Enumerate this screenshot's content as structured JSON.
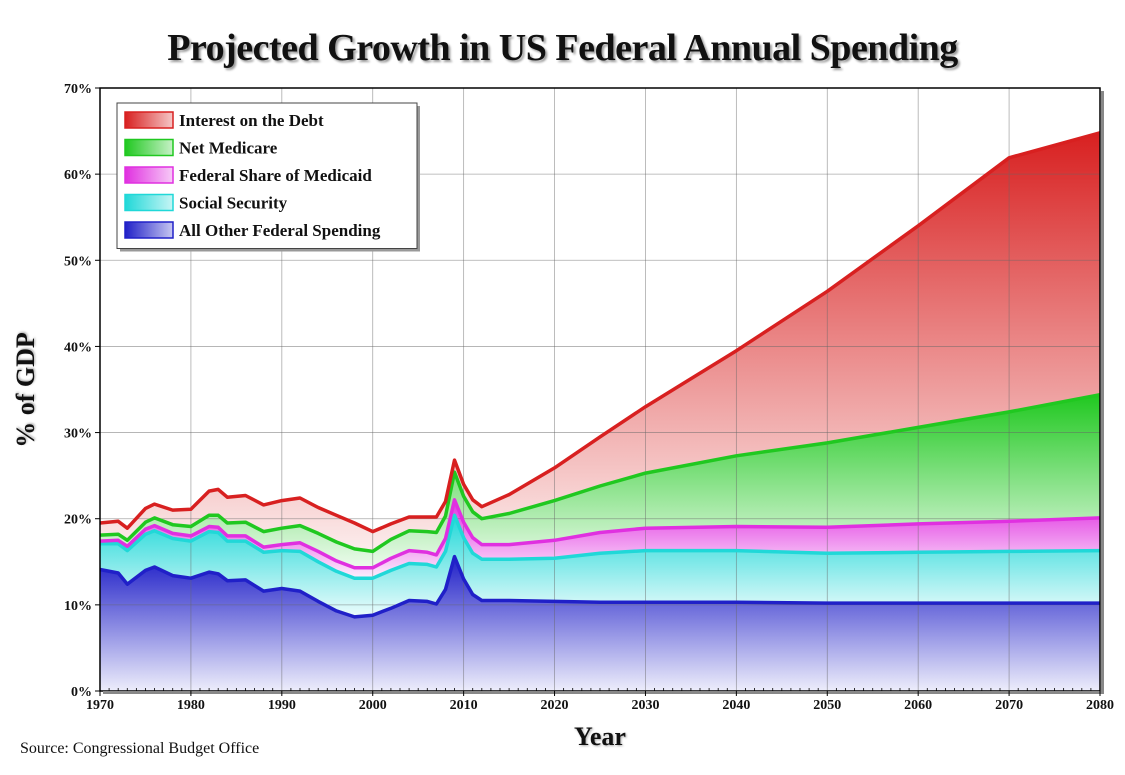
{
  "chart_data": {
    "type": "area",
    "stacked": true,
    "title": "Projected Growth in US Federal Annual Spending",
    "xlabel": "Year",
    "ylabel": "% of GDP",
    "source": "Source: Congressional Budget Office",
    "xlim": [
      1970,
      2080
    ],
    "ylim": [
      0,
      70
    ],
    "x_ticks": [
      "1970",
      "1980",
      "1990",
      "2000",
      "2010",
      "2020",
      "2030",
      "2040",
      "2050",
      "2060",
      "2070",
      "2080"
    ],
    "y_ticks": [
      "0%",
      "10%",
      "20%",
      "30%",
      "40%",
      "50%",
      "60%",
      "70%"
    ],
    "grid": true,
    "legend_position": "top-left",
    "x": [
      1970,
      1972,
      1973,
      1975,
      1976,
      1978,
      1980,
      1982,
      1983,
      1984,
      1986,
      1988,
      1990,
      1992,
      1994,
      1996,
      1998,
      2000,
      2002,
      2004,
      2006,
      2007,
      2008,
      2009,
      2010,
      2011,
      2012,
      2015,
      2020,
      2025,
      2030,
      2040,
      2050,
      2060,
      2070,
      2080
    ],
    "series": [
      {
        "name": "All Other Federal Spending",
        "color": "#2020c8",
        "values": [
          14.1,
          13.7,
          12.4,
          14.0,
          14.4,
          13.4,
          13.1,
          13.8,
          13.6,
          12.8,
          12.9,
          11.6,
          11.9,
          11.6,
          10.4,
          9.3,
          8.6,
          8.8,
          9.6,
          10.5,
          10.4,
          10.1,
          11.8,
          15.6,
          13.0,
          11.2,
          10.5,
          10.5,
          10.4,
          10.3,
          10.3,
          10.3,
          10.2,
          10.2,
          10.2,
          10.2
        ]
      },
      {
        "name": "Social Security",
        "color": "#20d8d8",
        "values": [
          3.0,
          3.4,
          3.9,
          4.2,
          4.2,
          4.3,
          4.3,
          4.7,
          4.8,
          4.6,
          4.5,
          4.5,
          4.4,
          4.6,
          4.6,
          4.6,
          4.5,
          4.3,
          4.4,
          4.3,
          4.3,
          4.3,
          4.4,
          4.8,
          4.8,
          4.8,
          4.8,
          4.8,
          5.0,
          5.7,
          6.0,
          6.0,
          5.8,
          5.9,
          6.0,
          6.1
        ]
      },
      {
        "name": "Federal Share of Medicaid",
        "color": "#e030e0",
        "values": [
          0.3,
          0.4,
          0.5,
          0.6,
          0.6,
          0.6,
          0.6,
          0.6,
          0.6,
          0.6,
          0.6,
          0.6,
          0.7,
          1.0,
          1.2,
          1.2,
          1.2,
          1.2,
          1.4,
          1.5,
          1.4,
          1.4,
          1.5,
          1.8,
          1.8,
          1.8,
          1.7,
          1.7,
          2.1,
          2.4,
          2.6,
          2.8,
          3.0,
          3.3,
          3.5,
          3.8
        ]
      },
      {
        "name": "Net Medicare",
        "color": "#20c820",
        "values": [
          0.7,
          0.7,
          0.7,
          0.8,
          0.9,
          1.0,
          1.1,
          1.3,
          1.4,
          1.5,
          1.6,
          1.8,
          1.9,
          2.0,
          2.1,
          2.2,
          2.2,
          1.9,
          2.2,
          2.3,
          2.4,
          2.6,
          2.6,
          3.2,
          3.0,
          3.0,
          3.0,
          3.6,
          4.6,
          5.4,
          6.4,
          8.2,
          9.8,
          11.2,
          12.7,
          14.3
        ]
      },
      {
        "name": "Interest on the Debt",
        "color": "#d82020",
        "values": [
          1.4,
          1.5,
          1.4,
          1.6,
          1.6,
          1.7,
          2.0,
          2.8,
          3.0,
          3.0,
          3.1,
          3.1,
          3.2,
          3.2,
          3.0,
          3.1,
          3.0,
          2.3,
          1.8,
          1.6,
          1.7,
          1.8,
          1.7,
          1.4,
          1.4,
          1.4,
          1.4,
          2.2,
          3.8,
          5.7,
          7.7,
          12.2,
          17.6,
          23.4,
          29.5,
          30.4
        ]
      }
    ]
  }
}
